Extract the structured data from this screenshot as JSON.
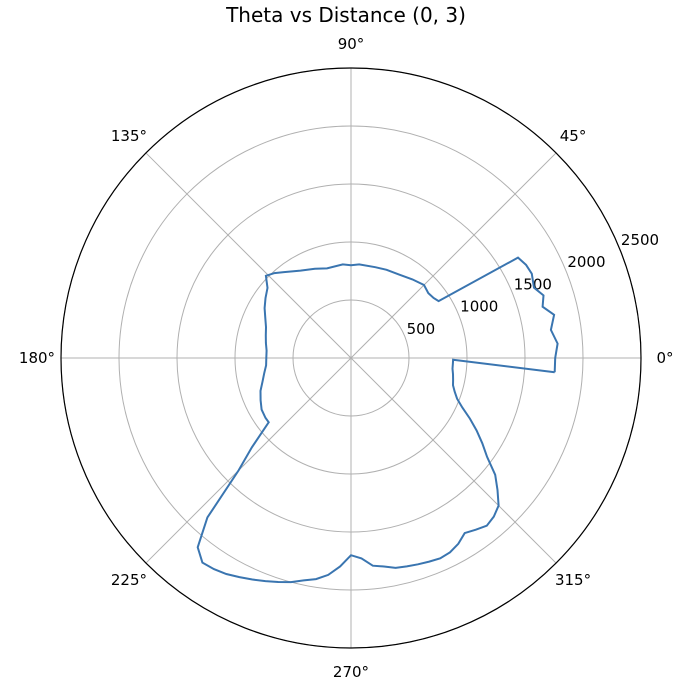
{
  "chart_data": {
    "type": "line",
    "projection": "polar",
    "title": "Theta vs Distance (0, 3)",
    "theta_ticks": [
      {
        "deg": 0,
        "label": "0°"
      },
      {
        "deg": 45,
        "label": "45°"
      },
      {
        "deg": 90,
        "label": "90°"
      },
      {
        "deg": 135,
        "label": "135°"
      },
      {
        "deg": 180,
        "label": "180°"
      },
      {
        "deg": 225,
        "label": "225°"
      },
      {
        "deg": 270,
        "label": "270°"
      },
      {
        "deg": 315,
        "label": "315°"
      }
    ],
    "r_ticks": [
      {
        "value": 500,
        "label": "500"
      },
      {
        "value": 1000,
        "label": "1000"
      },
      {
        "value": 1500,
        "label": "1500"
      },
      {
        "value": 2000,
        "label": "2000"
      },
      {
        "value": 2500,
        "label": "2500"
      }
    ],
    "rlim": [
      0,
      2500
    ],
    "grid": true,
    "series_color": "#3a75b0",
    "series": [
      {
        "theta_deg": [
          -4,
          0,
          4,
          8,
          12,
          15,
          18,
          21,
          25,
          28,
          31,
          33,
          36,
          40,
          45,
          52,
          60,
          68,
          75,
          85,
          90,
          95,
          105,
          112,
          120,
          128,
          132,
          136,
          140,
          145,
          150,
          155,
          160,
          165,
          170,
          175,
          180,
          185,
          190,
          195,
          200,
          205,
          210,
          215,
          218,
          222,
          225,
          228,
          231,
          234,
          237,
          240,
          243,
          246,
          249,
          252,
          255,
          258,
          261,
          264,
          267,
          270,
          273,
          276,
          279,
          282,
          285,
          288,
          291,
          294,
          297,
          300,
          303,
          306,
          309,
          312,
          315,
          318,
          321,
          324,
          327,
          330,
          333,
          336,
          339,
          342,
          345,
          348,
          351,
          354,
          357,
          359
        ],
        "r": [
          1760,
          1760,
          1785,
          1740,
          1790,
          1710,
          1745,
          1690,
          1720,
          1710,
          1680,
          900,
          880,
          870,
          890,
          860,
          830,
          820,
          810,
          810,
          800,
          810,
          800,
          830,
          870,
          940,
          985,
          1020,
          940,
          900,
          860,
          815,
          780,
          760,
          745,
          730,
          730,
          735,
          760,
          790,
          830,
          860,
          890,
          900,
          900,
          1150,
          1370,
          1850,
          2100,
          2180,
          2170,
          2150,
          2120,
          2090,
          2060,
          2030,
          2000,
          1960,
          1930,
          1880,
          1800,
          1700,
          1730,
          1800,
          1820,
          1850,
          1860,
          1870,
          1880,
          1890,
          1880,
          1850,
          1800,
          1830,
          1860,
          1840,
          1800,
          1700,
          1600,
          1450,
          1350,
          1250,
          1150,
          1050,
          980,
          940,
          910,
          900,
          890,
          880,
          880,
          880
        ]
      }
    ]
  }
}
